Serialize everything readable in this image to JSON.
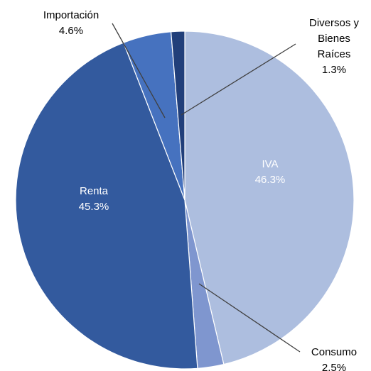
{
  "chart_data": {
    "type": "pie",
    "categories": [
      "IVA",
      "Consumo",
      "Renta",
      "Importación",
      "Diversos y Bienes Raíces"
    ],
    "values": [
      46.3,
      2.5,
      45.3,
      4.6,
      1.3
    ],
    "value_labels": [
      "46.3%",
      "2.5%",
      "45.3%",
      "4.6%",
      "1.3%"
    ],
    "colors": [
      "#adbedf",
      "#7f96cf",
      "#335a9e",
      "#4672bf",
      "#213f7a"
    ]
  }
}
